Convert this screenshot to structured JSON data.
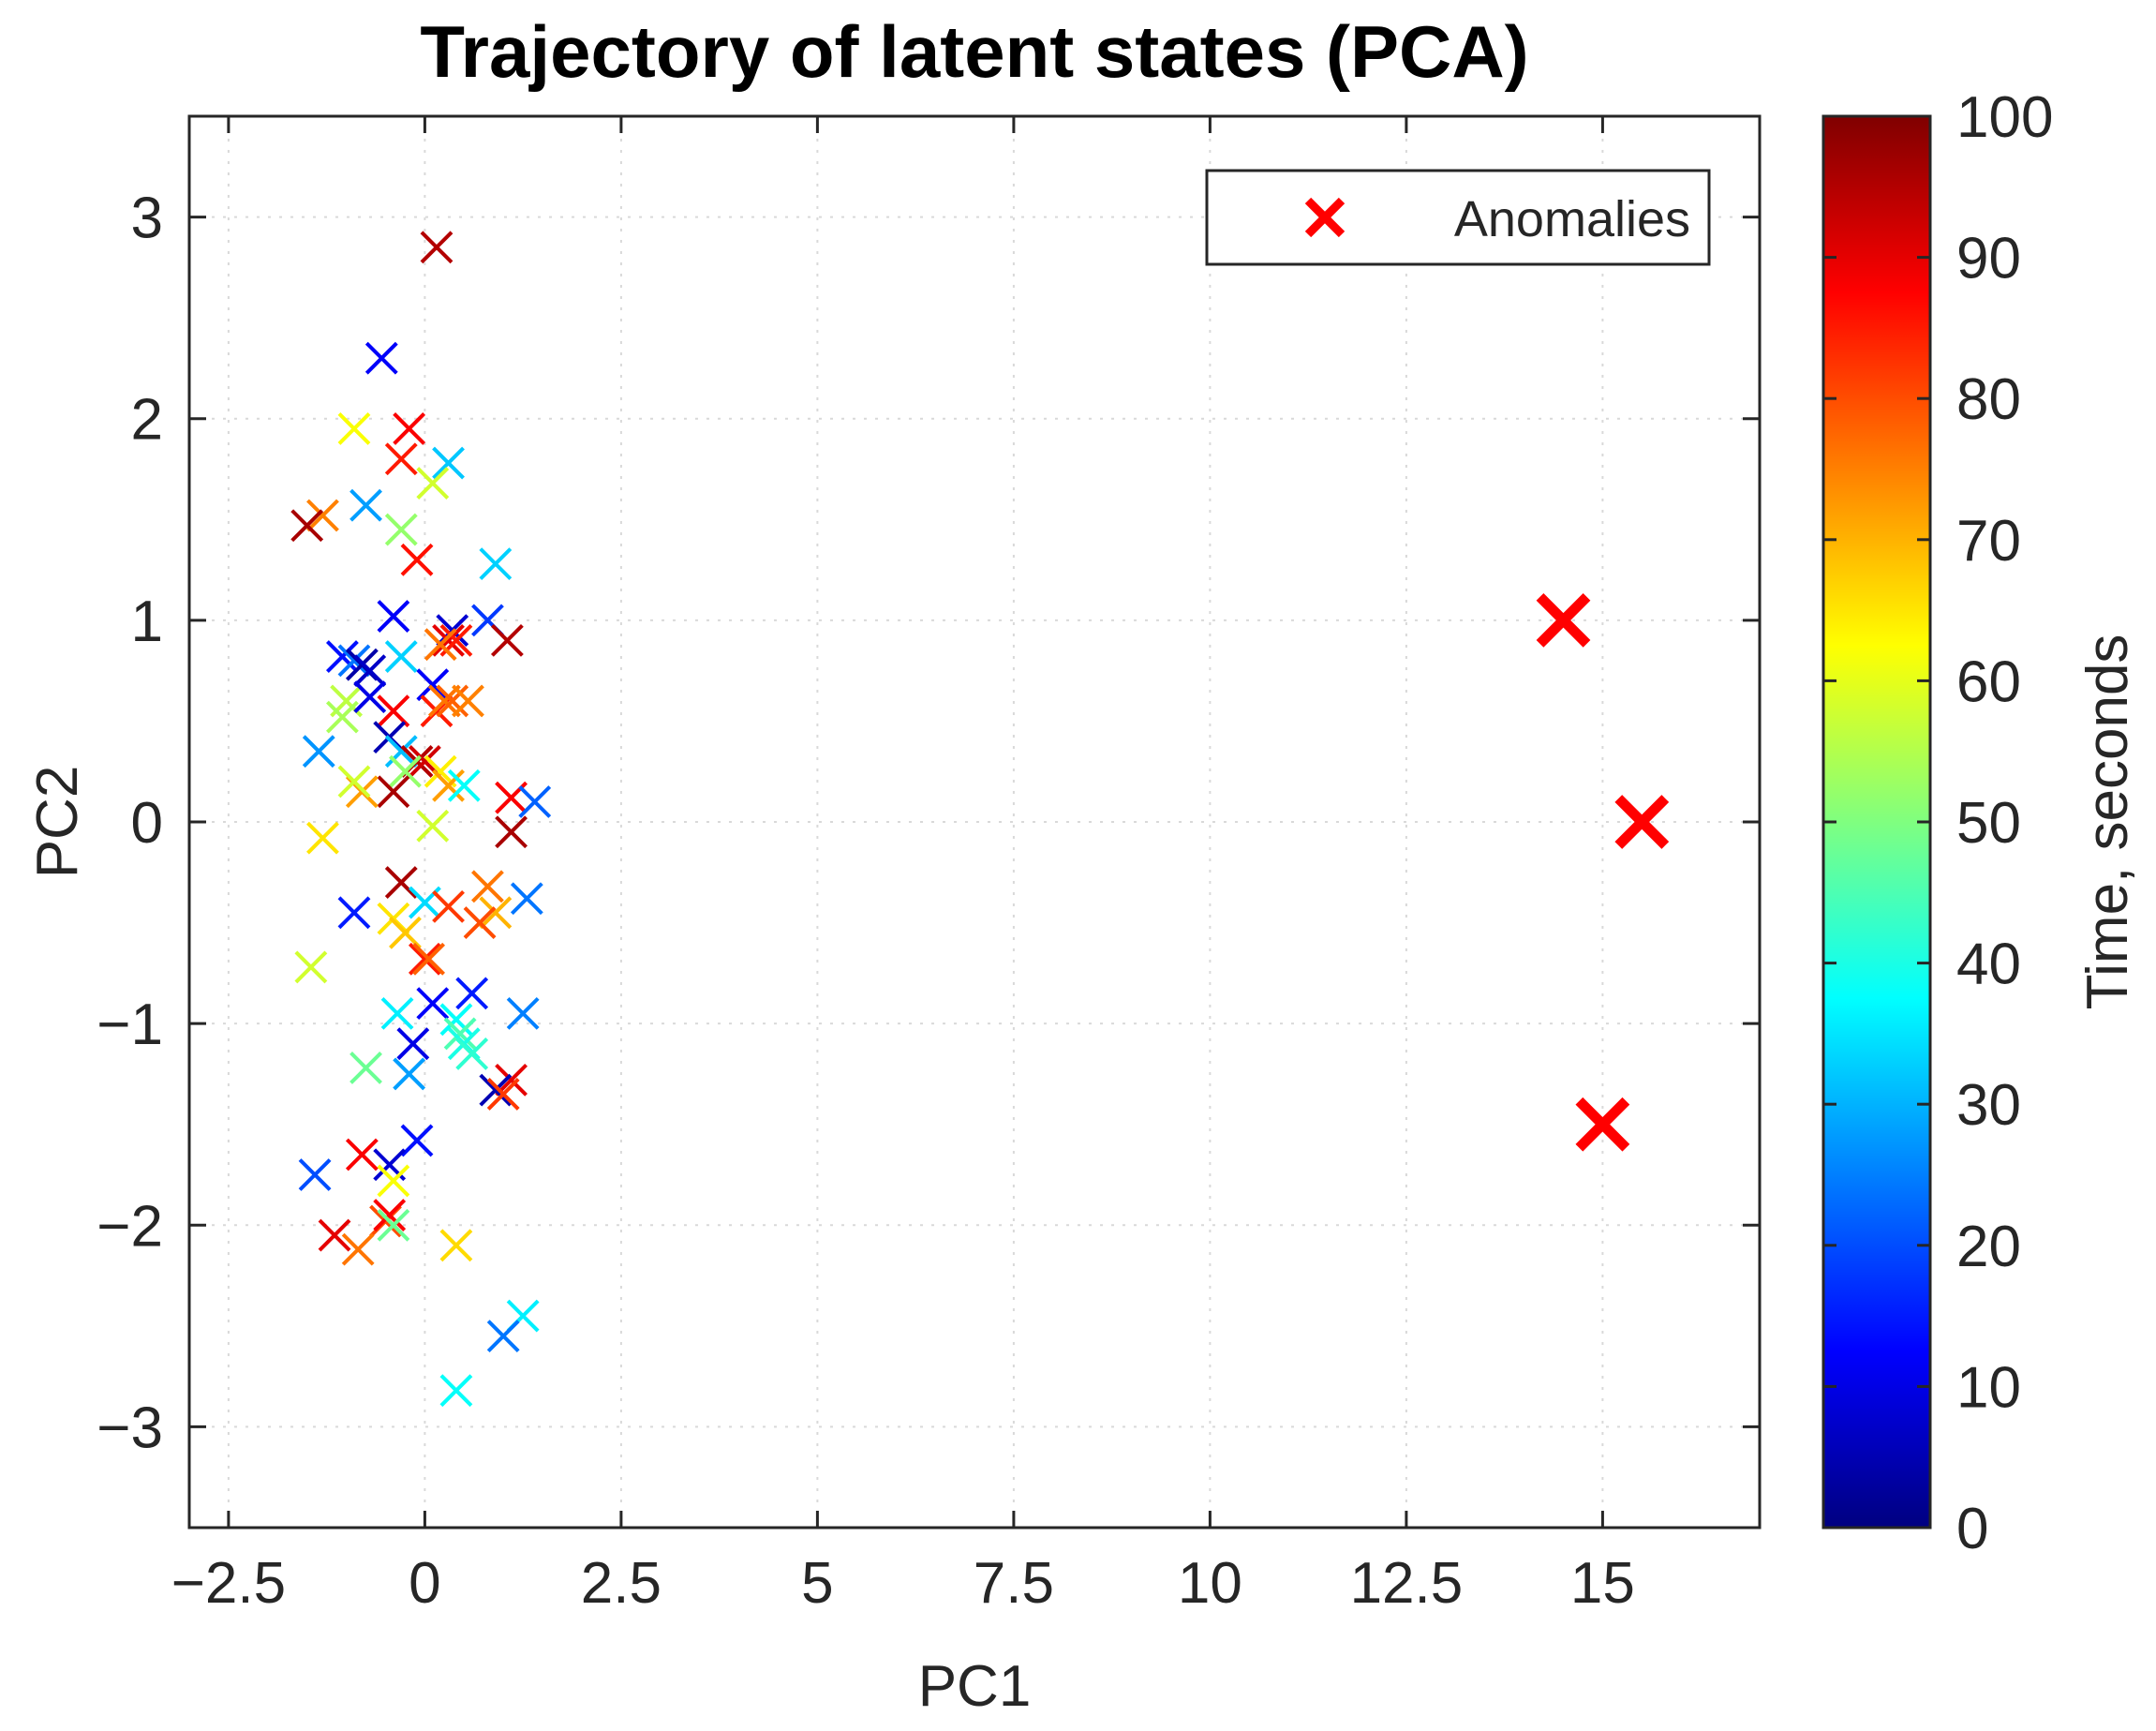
{
  "chart_data": {
    "type": "scatter",
    "title": "Trajectory of latent states (PCA)",
    "xlabel": "PC1",
    "ylabel": "PC2",
    "xlim": [
      -3.0,
      17.0
    ],
    "ylim": [
      -3.5,
      3.5
    ],
    "xticks": [
      -2.5,
      0,
      2.5,
      5,
      7.5,
      10,
      12.5,
      15
    ],
    "xtick_labels": [
      "−2.5",
      "0",
      "2.5",
      "5",
      "7.5",
      "10",
      "12.5",
      "15"
    ],
    "yticks": [
      -3,
      -2,
      -1,
      0,
      1,
      2,
      3
    ],
    "ytick_labels": [
      "−3",
      "−2",
      "−1",
      "0",
      "1",
      "2",
      "3"
    ],
    "grid": true,
    "marker": "x",
    "colormap": "jet",
    "colorbar": {
      "label": "Time, seconds",
      "range": [
        0,
        100
      ],
      "ticks": [
        0,
        10,
        20,
        30,
        40,
        50,
        60,
        70,
        80,
        90,
        100
      ],
      "tick_labels": [
        "0",
        "10",
        "20",
        "30",
        "40",
        "50",
        "60",
        "70",
        "80",
        "90",
        "100"
      ]
    },
    "legend": {
      "position": "top-right",
      "entries": [
        "Anomalies"
      ]
    },
    "anomalies": {
      "name": "Anomalies",
      "color": "#ff0000",
      "points": [
        [
          14.5,
          1.0
        ],
        [
          15.5,
          0.0
        ],
        [
          15.0,
          -1.5
        ]
      ]
    },
    "points": [
      [
        0.15,
        2.85,
        95
      ],
      [
        -0.55,
        2.3,
        12
      ],
      [
        -0.9,
        1.95,
        62
      ],
      [
        -0.2,
        1.95,
        88
      ],
      [
        -0.3,
        1.8,
        85
      ],
      [
        0.3,
        1.78,
        32
      ],
      [
        0.1,
        1.68,
        58
      ],
      [
        -0.75,
        1.57,
        28
      ],
      [
        -1.3,
        1.52,
        75
      ],
      [
        -1.5,
        1.47,
        96
      ],
      [
        -0.3,
        1.45,
        52
      ],
      [
        -0.1,
        1.3,
        86
      ],
      [
        0.9,
        1.28,
        33
      ],
      [
        -0.4,
        1.02,
        12
      ],
      [
        0.8,
        1.0,
        18
      ],
      [
        0.35,
        0.95,
        8
      ],
      [
        0.3,
        0.9,
        90
      ],
      [
        0.4,
        0.9,
        85
      ],
      [
        0.2,
        0.88,
        76
      ],
      [
        1.05,
        0.9,
        95
      ],
      [
        -1.05,
        0.82,
        14
      ],
      [
        -0.9,
        0.8,
        24
      ],
      [
        -0.8,
        0.78,
        4
      ],
      [
        -0.7,
        0.75,
        7
      ],
      [
        -0.3,
        0.82,
        33
      ],
      [
        0.1,
        0.68,
        12
      ],
      [
        -1.0,
        0.6,
        56
      ],
      [
        -0.7,
        0.62,
        10
      ],
      [
        -1.05,
        0.52,
        54
      ],
      [
        0.15,
        0.55,
        85
      ],
      [
        0.25,
        0.6,
        76
      ],
      [
        0.35,
        0.6,
        78
      ],
      [
        0.55,
        0.6,
        75
      ],
      [
        -0.4,
        0.55,
        88
      ],
      [
        -0.45,
        0.42,
        5
      ],
      [
        -1.35,
        0.35,
        27
      ],
      [
        -0.3,
        0.35,
        31
      ],
      [
        -0.1,
        0.3,
        95
      ],
      [
        0.0,
        0.3,
        92
      ],
      [
        -0.25,
        0.25,
        52
      ],
      [
        0.2,
        0.25,
        64
      ],
      [
        0.3,
        0.18,
        72
      ],
      [
        0.5,
        0.18,
        38
      ],
      [
        -0.4,
        0.15,
        96
      ],
      [
        -0.8,
        0.15,
        72
      ],
      [
        -0.9,
        0.2,
        58
      ],
      [
        1.1,
        0.12,
        88
      ],
      [
        1.4,
        0.1,
        22
      ],
      [
        1.1,
        -0.05,
        96
      ],
      [
        0.1,
        -0.02,
        58
      ],
      [
        -1.3,
        -0.08,
        65
      ],
      [
        -0.3,
        -0.3,
        96
      ],
      [
        0.8,
        -0.32,
        76
      ],
      [
        0.9,
        -0.45,
        70
      ],
      [
        1.3,
        -0.38,
        24
      ],
      [
        0.0,
        -0.4,
        34
      ],
      [
        0.3,
        -0.42,
        82
      ],
      [
        0.7,
        -0.5,
        80
      ],
      [
        -0.9,
        -0.45,
        15
      ],
      [
        -0.4,
        -0.48,
        65
      ],
      [
        -0.25,
        -0.55,
        68
      ],
      [
        0.0,
        -0.68,
        85
      ],
      [
        0.05,
        -0.68,
        78
      ],
      [
        -1.45,
        -0.72,
        58
      ],
      [
        0.6,
        -0.85,
        15
      ],
      [
        0.1,
        -0.9,
        12
      ],
      [
        -0.35,
        -0.95,
        36
      ],
      [
        1.25,
        -0.95,
        25
      ],
      [
        0.4,
        -0.98,
        38
      ],
      [
        0.45,
        -1.05,
        45
      ],
      [
        -0.15,
        -1.1,
        10
      ],
      [
        0.5,
        -1.1,
        40
      ],
      [
        0.6,
        -1.15,
        42
      ],
      [
        -0.75,
        -1.22,
        48
      ],
      [
        -0.2,
        -1.25,
        28
      ],
      [
        1.1,
        -1.28,
        90
      ],
      [
        0.9,
        -1.33,
        5
      ],
      [
        1.0,
        -1.35,
        82
      ],
      [
        -0.1,
        -1.58,
        14
      ],
      [
        -0.8,
        -1.65,
        88
      ],
      [
        -1.4,
        -1.75,
        20
      ],
      [
        -0.45,
        -1.7,
        8
      ],
      [
        -0.4,
        -1.78,
        62
      ],
      [
        -0.5,
        -1.98,
        80
      ],
      [
        -0.45,
        -1.95,
        88
      ],
      [
        -0.4,
        -2.0,
        48
      ],
      [
        -1.15,
        -2.05,
        90
      ],
      [
        -0.85,
        -2.12,
        76
      ],
      [
        0.4,
        -2.1,
        66
      ],
      [
        1.25,
        -2.45,
        36
      ],
      [
        1.0,
        -2.55,
        24
      ],
      [
        0.4,
        -2.82,
        38
      ]
    ]
  }
}
